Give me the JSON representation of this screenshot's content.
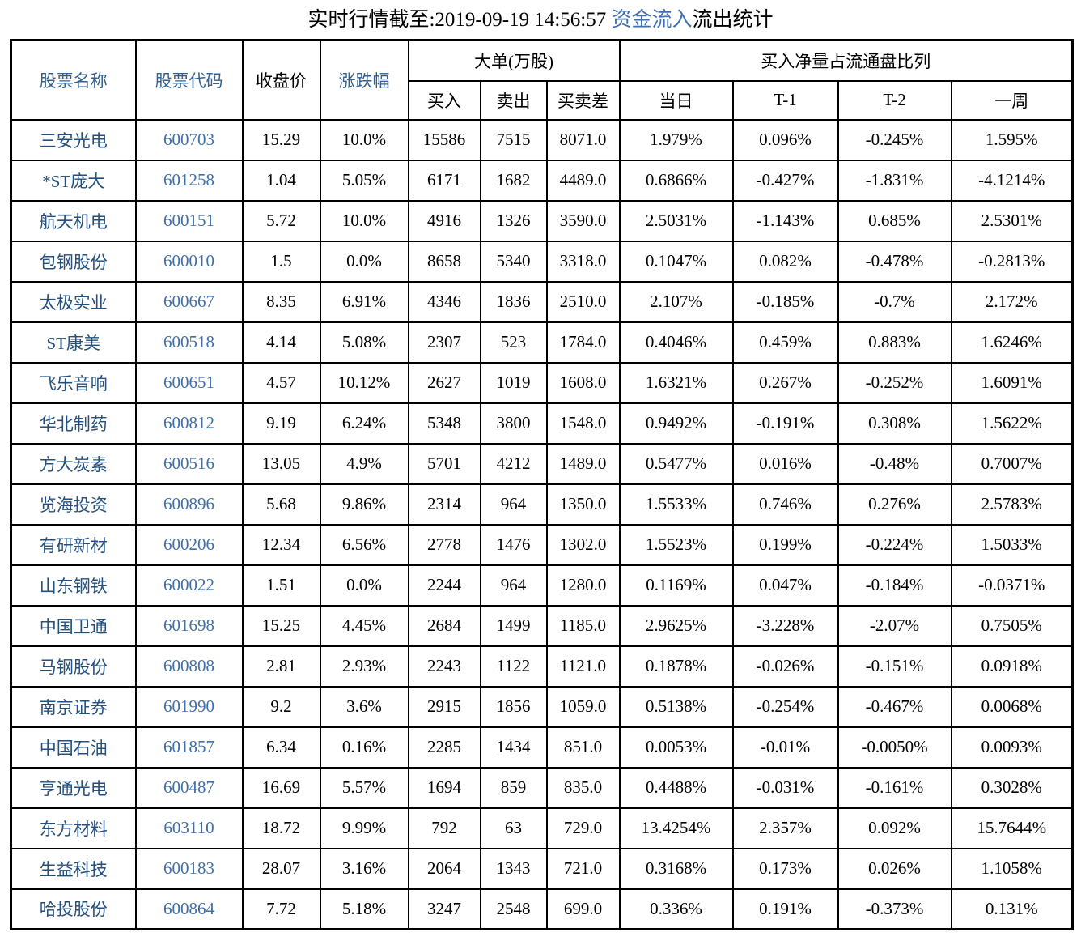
{
  "title": {
    "prefix": "实时行情截至:2019-09-19 14:56:57 ",
    "highlight": "资金流入",
    "suffix": "流出统计"
  },
  "colors": {
    "title_highlight": "#3f6fae",
    "header_blue": "#33618f",
    "stock_name_blue": "#24507f",
    "stock_code_blue": "#3e6fae",
    "border": "#000000",
    "text": "#000000",
    "background": "#ffffff"
  },
  "table": {
    "headers": {
      "stock_name": "股票名称",
      "stock_code": "股票代码",
      "close_price": "收盘价",
      "change_pct": "涨跌幅",
      "big_order_group": "大单(万股)",
      "buy": "买入",
      "sell": "卖出",
      "buy_sell_diff": "买卖差",
      "net_buy_ratio_group": "买入净量占流通盘比列",
      "today": "当日",
      "t_minus_1": "T-1",
      "t_minus_2": "T-2",
      "one_week": "一周"
    },
    "rows": [
      [
        "三安光电",
        "600703",
        "15.29",
        "10.0%",
        "15586",
        "7515",
        "8071.0",
        "1.979%",
        "0.096%",
        "-0.245%",
        "1.595%"
      ],
      [
        "*ST庞大",
        "601258",
        "1.04",
        "5.05%",
        "6171",
        "1682",
        "4489.0",
        "0.6866%",
        "-0.427%",
        "-1.831%",
        "-4.1214%"
      ],
      [
        "航天机电",
        "600151",
        "5.72",
        "10.0%",
        "4916",
        "1326",
        "3590.0",
        "2.5031%",
        "-1.143%",
        "0.685%",
        "2.5301%"
      ],
      [
        "包钢股份",
        "600010",
        "1.5",
        "0.0%",
        "8658",
        "5340",
        "3318.0",
        "0.1047%",
        "0.082%",
        "-0.478%",
        "-0.2813%"
      ],
      [
        "太极实业",
        "600667",
        "8.35",
        "6.91%",
        "4346",
        "1836",
        "2510.0",
        "2.107%",
        "-0.185%",
        "-0.7%",
        "2.172%"
      ],
      [
        "ST康美",
        "600518",
        "4.14",
        "5.08%",
        "2307",
        "523",
        "1784.0",
        "0.4046%",
        "0.459%",
        "0.883%",
        "1.6246%"
      ],
      [
        "飞乐音响",
        "600651",
        "4.57",
        "10.12%",
        "2627",
        "1019",
        "1608.0",
        "1.6321%",
        "0.267%",
        "-0.252%",
        "1.6091%"
      ],
      [
        "华北制药",
        "600812",
        "9.19",
        "6.24%",
        "5348",
        "3800",
        "1548.0",
        "0.9492%",
        "-0.191%",
        "0.308%",
        "1.5622%"
      ],
      [
        "方大炭素",
        "600516",
        "13.05",
        "4.9%",
        "5701",
        "4212",
        "1489.0",
        "0.5477%",
        "0.016%",
        "-0.48%",
        "0.7007%"
      ],
      [
        "览海投资",
        "600896",
        "5.68",
        "9.86%",
        "2314",
        "964",
        "1350.0",
        "1.5533%",
        "0.746%",
        "0.276%",
        "2.5783%"
      ],
      [
        "有研新材",
        "600206",
        "12.34",
        "6.56%",
        "2778",
        "1476",
        "1302.0",
        "1.5523%",
        "0.199%",
        "-0.224%",
        "1.5033%"
      ],
      [
        "山东钢铁",
        "600022",
        "1.51",
        "0.0%",
        "2244",
        "964",
        "1280.0",
        "0.1169%",
        "0.047%",
        "-0.184%",
        "-0.0371%"
      ],
      [
        "中国卫通",
        "601698",
        "15.25",
        "4.45%",
        "2684",
        "1499",
        "1185.0",
        "2.9625%",
        "-3.228%",
        "-2.07%",
        "0.7505%"
      ],
      [
        "马钢股份",
        "600808",
        "2.81",
        "2.93%",
        "2243",
        "1122",
        "1121.0",
        "0.1878%",
        "-0.026%",
        "-0.151%",
        "0.0918%"
      ],
      [
        "南京证券",
        "601990",
        "9.2",
        "3.6%",
        "2915",
        "1856",
        "1059.0",
        "0.5138%",
        "-0.254%",
        "-0.467%",
        "0.0068%"
      ],
      [
        "中国石油",
        "601857",
        "6.34",
        "0.16%",
        "2285",
        "1434",
        "851.0",
        "0.0053%",
        "-0.01%",
        "-0.0050%",
        "0.0093%"
      ],
      [
        "亨通光电",
        "600487",
        "16.69",
        "5.57%",
        "1694",
        "859",
        "835.0",
        "0.4488%",
        "-0.031%",
        "-0.161%",
        "0.3028%"
      ],
      [
        "东方材料",
        "603110",
        "18.72",
        "9.99%",
        "792",
        "63",
        "729.0",
        "13.4254%",
        "2.357%",
        "0.092%",
        "15.7644%"
      ],
      [
        "生益科技",
        "600183",
        "28.07",
        "3.16%",
        "2064",
        "1343",
        "721.0",
        "0.3168%",
        "0.173%",
        "0.026%",
        "1.1058%"
      ],
      [
        "哈投股份",
        "600864",
        "7.72",
        "5.18%",
        "3247",
        "2548",
        "699.0",
        "0.336%",
        "0.191%",
        "-0.373%",
        "0.131%"
      ]
    ]
  }
}
